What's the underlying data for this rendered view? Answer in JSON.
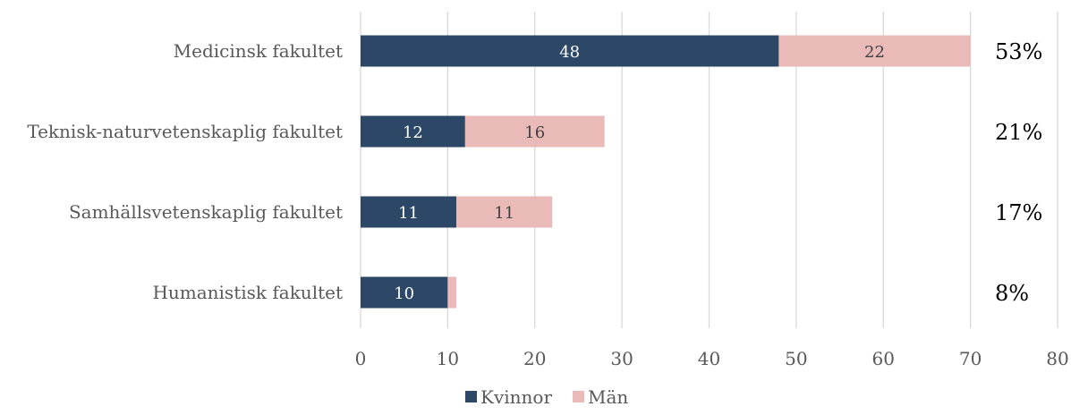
{
  "chart_data": {
    "type": "bar",
    "orientation": "horizontal",
    "stacked": true,
    "categories": [
      "Medicinsk fakultet",
      "Teknisk-naturvetenskaplig fakultet",
      "Samhällsvetenskaplig fakultet",
      "Humanistisk fakultet"
    ],
    "series": [
      {
        "name": "Kvinnor",
        "color": "#2c4866",
        "label_color": "#ffffff",
        "values": [
          48,
          12,
          11,
          10
        ]
      },
      {
        "name": "Män",
        "color": "#eabab8",
        "label_color": "#404040",
        "values": [
          22,
          16,
          11,
          1
        ]
      }
    ],
    "data_labels": [
      [
        "48",
        "12",
        "11",
        "10"
      ],
      [
        "22",
        "16",
        "11",
        ""
      ]
    ],
    "percent_labels": [
      "53%",
      "21%",
      "17%",
      "8%"
    ],
    "xlim": [
      0,
      80
    ],
    "x_ticks": [
      0,
      10,
      20,
      30,
      40,
      50,
      60,
      70,
      80
    ],
    "x_tick_labels": [
      "0",
      "10",
      "20",
      "30",
      "40",
      "50",
      "60",
      "70",
      "80"
    ],
    "grid": "vertical",
    "legend_position": "bottom",
    "title": "",
    "xlabel": "",
    "ylabel": ""
  }
}
